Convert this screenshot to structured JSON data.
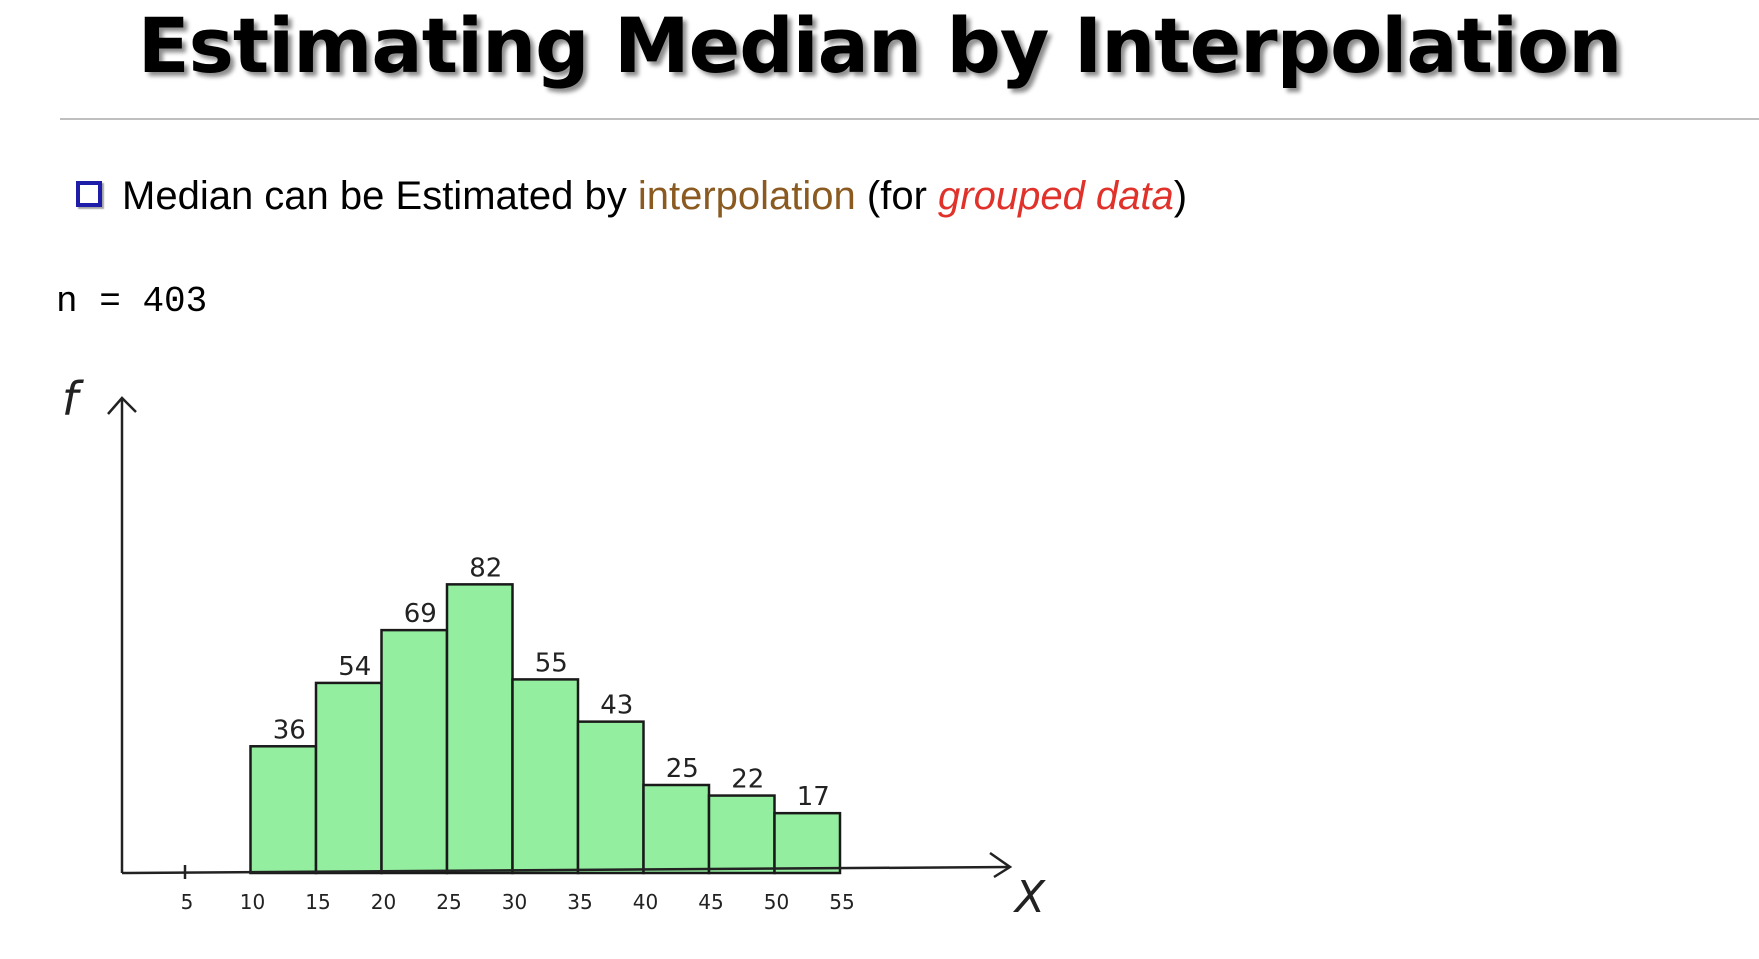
{
  "title": "Estimating Median by Interpolation",
  "bullet": {
    "prefix": "Median can be Estimated by ",
    "highlight1": "interpolation",
    "middle": " (for ",
    "highlight2": "grouped data",
    "suffix": ")"
  },
  "n_label": "n",
  "n_equals": "=",
  "n_value": "403",
  "colors": {
    "bar_fill": "#93ee9f",
    "bullet_box": "#1d1daa",
    "brown_text": "#8a5a21",
    "red_text": "#e0322a"
  },
  "chart_data": {
    "type": "bar",
    "xlabel": "X",
    "ylabel": "f",
    "x_ticks": [
      "5",
      "10",
      "15",
      "20",
      "25",
      "30",
      "35",
      "40",
      "45",
      "50",
      "55"
    ],
    "bins": [
      {
        "from": 10,
        "to": 15,
        "value": 36,
        "label": "36"
      },
      {
        "from": 15,
        "to": 20,
        "value": 54,
        "label": "54"
      },
      {
        "from": 20,
        "to": 25,
        "value": 69,
        "label": "69"
      },
      {
        "from": 25,
        "to": 30,
        "value": 82,
        "label": "82"
      },
      {
        "from": 30,
        "to": 35,
        "value": 55,
        "label": "55"
      },
      {
        "from": 35,
        "to": 40,
        "value": 43,
        "label": "43"
      },
      {
        "from": 40,
        "to": 45,
        "value": 25,
        "label": "25"
      },
      {
        "from": 45,
        "to": 50,
        "value": 22,
        "label": "22"
      },
      {
        "from": 50,
        "to": 55,
        "value": 17,
        "label": "17"
      }
    ],
    "grid": false
  }
}
